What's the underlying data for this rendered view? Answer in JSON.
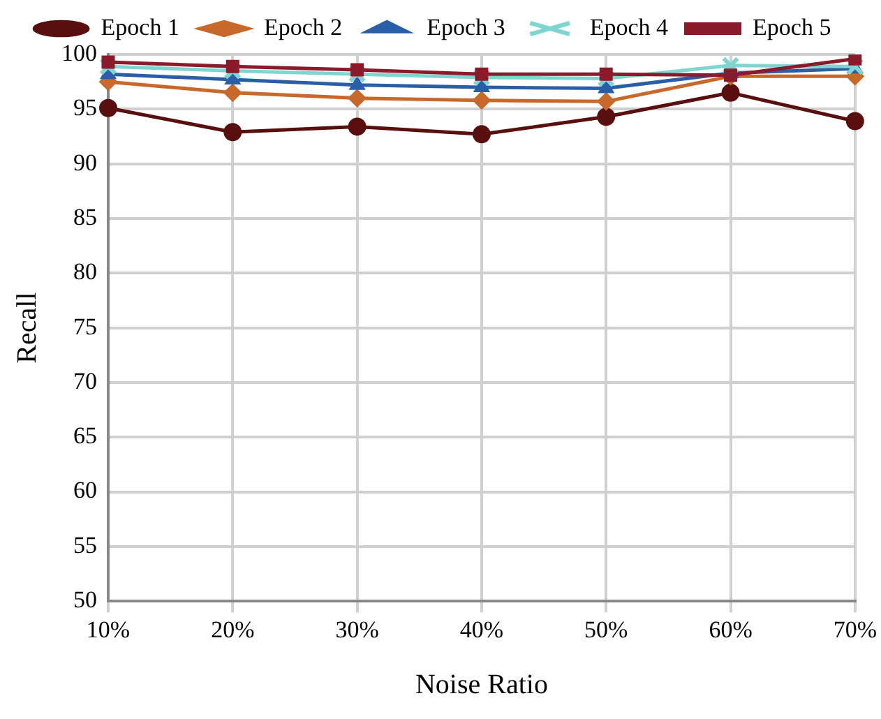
{
  "chart_data": {
    "type": "line",
    "xlabel": "Noise Ratio",
    "ylabel": "Recall",
    "categories": [
      "10%",
      "20%",
      "30%",
      "40%",
      "50%",
      "60%",
      "70%"
    ],
    "ylim": [
      50,
      100
    ],
    "yticks": [
      50,
      55,
      60,
      65,
      70,
      75,
      80,
      85,
      90,
      95,
      100
    ],
    "grid": true,
    "legend": "top",
    "line_style": "solid",
    "series": [
      {
        "name": "Epoch 1",
        "color": "#5a0f0f",
        "marker": "circle",
        "values": [
          95.1,
          92.9,
          93.4,
          92.7,
          94.3,
          96.5,
          93.9
        ]
      },
      {
        "name": "Epoch 2",
        "color": "#c8682a",
        "marker": "diamond",
        "values": [
          97.5,
          96.5,
          96.0,
          95.8,
          95.7,
          98.0,
          98.0
        ]
      },
      {
        "name": "Epoch 3",
        "color": "#2a5fa8",
        "marker": "triangle",
        "values": [
          98.2,
          97.7,
          97.2,
          97.0,
          96.9,
          98.3,
          98.7
        ]
      },
      {
        "name": "Epoch 4",
        "color": "#7fd6d0",
        "marker": "cross",
        "values": [
          98.9,
          98.5,
          98.2,
          97.9,
          97.8,
          99.0,
          98.9
        ]
      },
      {
        "name": "Epoch 5",
        "color": "#8b1a2a",
        "marker": "square",
        "values": [
          99.3,
          98.9,
          98.6,
          98.2,
          98.2,
          98.1,
          99.6
        ]
      }
    ]
  }
}
